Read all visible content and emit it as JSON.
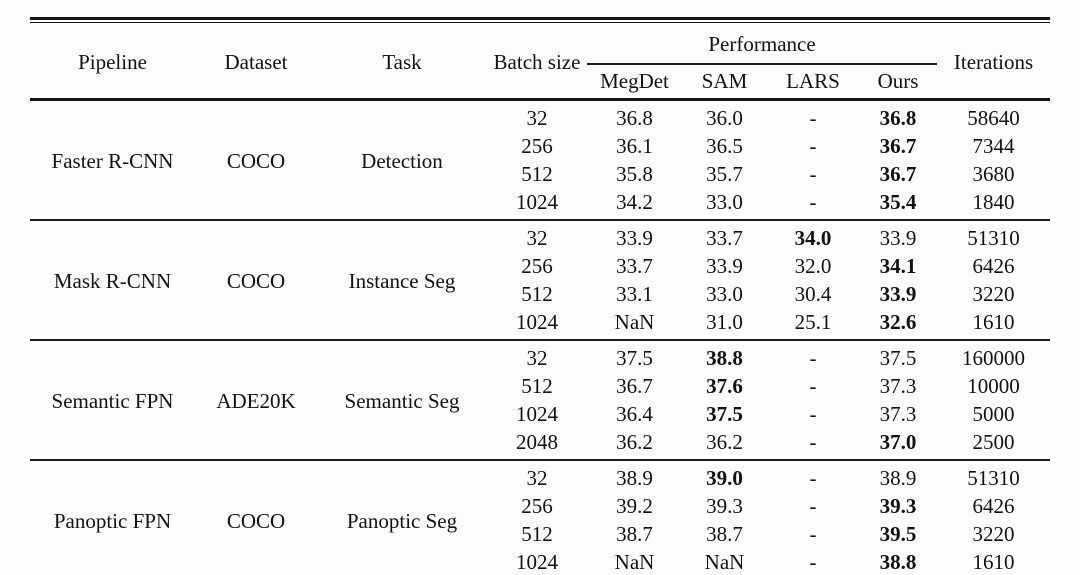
{
  "header": {
    "pipeline": "Pipeline",
    "dataset": "Dataset",
    "task": "Task",
    "batch_size": "Batch size",
    "performance": "Performance",
    "methods": [
      "MegDet",
      "SAM",
      "LARS",
      "Ours"
    ],
    "iterations": "Iterations"
  },
  "groups": [
    {
      "pipeline": "Faster R-CNN",
      "dataset": "COCO",
      "task": "Detection",
      "rows": [
        {
          "batch": "32",
          "perf": [
            {
              "v": "36.8"
            },
            {
              "v": "36.0"
            },
            {
              "v": "-"
            },
            {
              "v": "36.8",
              "b": true
            }
          ],
          "iters": "58640"
        },
        {
          "batch": "256",
          "perf": [
            {
              "v": "36.1"
            },
            {
              "v": "36.5"
            },
            {
              "v": "-"
            },
            {
              "v": "36.7",
              "b": true
            }
          ],
          "iters": "7344"
        },
        {
          "batch": "512",
          "perf": [
            {
              "v": "35.8"
            },
            {
              "v": "35.7"
            },
            {
              "v": "-"
            },
            {
              "v": "36.7",
              "b": true
            }
          ],
          "iters": "3680"
        },
        {
          "batch": "1024",
          "perf": [
            {
              "v": "34.2"
            },
            {
              "v": "33.0"
            },
            {
              "v": "-"
            },
            {
              "v": "35.4",
              "b": true
            }
          ],
          "iters": "1840"
        }
      ]
    },
    {
      "pipeline": "Mask R-CNN",
      "dataset": "COCO",
      "task": "Instance Seg",
      "rows": [
        {
          "batch": "32",
          "perf": [
            {
              "v": "33.9"
            },
            {
              "v": "33.7"
            },
            {
              "v": "34.0",
              "b": true
            },
            {
              "v": "33.9"
            }
          ],
          "iters": "51310"
        },
        {
          "batch": "256",
          "perf": [
            {
              "v": "33.7"
            },
            {
              "v": "33.9"
            },
            {
              "v": "32.0"
            },
            {
              "v": "34.1",
              "b": true
            }
          ],
          "iters": "6426"
        },
        {
          "batch": "512",
          "perf": [
            {
              "v": "33.1"
            },
            {
              "v": "33.0"
            },
            {
              "v": "30.4"
            },
            {
              "v": "33.9",
              "b": true
            }
          ],
          "iters": "3220"
        },
        {
          "batch": "1024",
          "perf": [
            {
              "v": "NaN"
            },
            {
              "v": "31.0"
            },
            {
              "v": "25.1"
            },
            {
              "v": "32.6",
              "b": true
            }
          ],
          "iters": "1610"
        }
      ]
    },
    {
      "pipeline": "Semantic FPN",
      "dataset": "ADE20K",
      "task": "Semantic Seg",
      "rows": [
        {
          "batch": "32",
          "perf": [
            {
              "v": "37.5"
            },
            {
              "v": "38.8",
              "b": true
            },
            {
              "v": "-"
            },
            {
              "v": "37.5"
            }
          ],
          "iters": "160000"
        },
        {
          "batch": "512",
          "perf": [
            {
              "v": "36.7"
            },
            {
              "v": "37.6",
              "b": true
            },
            {
              "v": "-"
            },
            {
              "v": "37.3"
            }
          ],
          "iters": "10000"
        },
        {
          "batch": "1024",
          "perf": [
            {
              "v": "36.4"
            },
            {
              "v": "37.5",
              "b": true
            },
            {
              "v": "-"
            },
            {
              "v": "37.3"
            }
          ],
          "iters": "5000"
        },
        {
          "batch": "2048",
          "perf": [
            {
              "v": "36.2"
            },
            {
              "v": "36.2"
            },
            {
              "v": "-"
            },
            {
              "v": "37.0",
              "b": true
            }
          ],
          "iters": "2500"
        }
      ]
    },
    {
      "pipeline": "Panoptic FPN",
      "dataset": "COCO",
      "task": "Panoptic Seg",
      "rows": [
        {
          "batch": "32",
          "perf": [
            {
              "v": "38.9"
            },
            {
              "v": "39.0",
              "b": true
            },
            {
              "v": "-"
            },
            {
              "v": "38.9"
            }
          ],
          "iters": "51310"
        },
        {
          "batch": "256",
          "perf": [
            {
              "v": "39.2"
            },
            {
              "v": "39.3"
            },
            {
              "v": "-"
            },
            {
              "v": "39.3",
              "b": true
            }
          ],
          "iters": "6426"
        },
        {
          "batch": "512",
          "perf": [
            {
              "v": "38.7"
            },
            {
              "v": "38.7"
            },
            {
              "v": "-"
            },
            {
              "v": "39.5",
              "b": true
            }
          ],
          "iters": "3220"
        },
        {
          "batch": "1024",
          "perf": [
            {
              "v": "NaN"
            },
            {
              "v": "NaN"
            },
            {
              "v": "-"
            },
            {
              "v": "38.8",
              "b": true
            }
          ],
          "iters": "1610"
        }
      ]
    }
  ],
  "colors": {
    "text": "#121212",
    "rule": "#161616",
    "background": "#fdfdfd"
  }
}
